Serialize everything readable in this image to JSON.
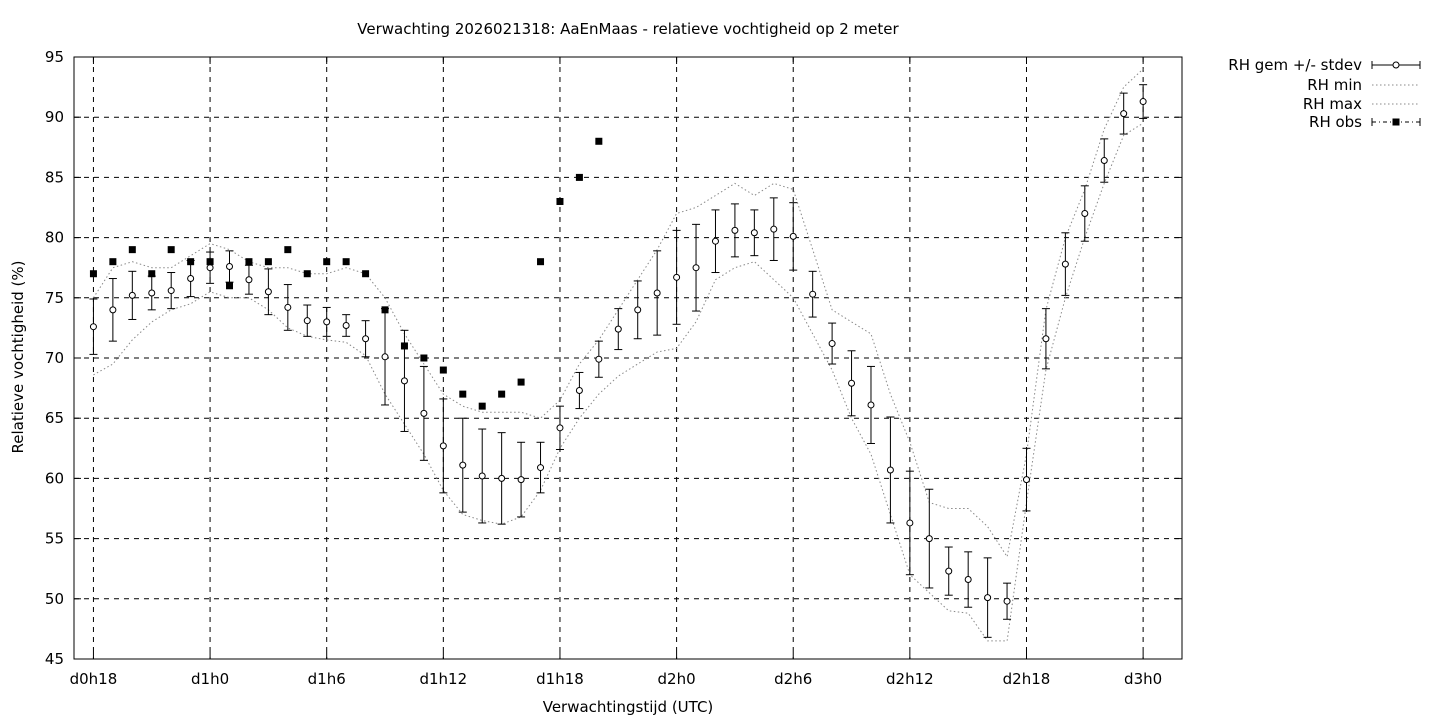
{
  "chart_data": {
    "type": "scatter",
    "title": "Verwachting 2026021318: AaEnMaas - relatieve vochtigheid op 2 meter",
    "xlabel": "Verwachtingstijd (UTC)",
    "ylabel": "Relatieve vochtigheid (%)",
    "xlim": [
      -1,
      56
    ],
    "ylim": [
      45,
      95
    ],
    "x_ticks": [
      {
        "x": 0,
        "label": "d0h18"
      },
      {
        "x": 6,
        "label": "d1h0"
      },
      {
        "x": 12,
        "label": "d1h6"
      },
      {
        "x": 18,
        "label": "d1h12"
      },
      {
        "x": 24,
        "label": "d1h18"
      },
      {
        "x": 30,
        "label": "d2h0"
      },
      {
        "x": 36,
        "label": "d2h6"
      },
      {
        "x": 42,
        "label": "d2h12"
      },
      {
        "x": 48,
        "label": "d2h18"
      },
      {
        "x": 54,
        "label": "d3h0"
      }
    ],
    "y_ticks": [
      45,
      50,
      55,
      60,
      65,
      70,
      75,
      80,
      85,
      90,
      95
    ],
    "grid": true,
    "legend_position": "outside-top-right",
    "series": [
      {
        "name": "RH gem +/- stdev",
        "style": "errorbars",
        "x": [
          0,
          1,
          2,
          3,
          4,
          5,
          6,
          7,
          8,
          9,
          10,
          11,
          12,
          13,
          14,
          15,
          16,
          17,
          18,
          19,
          20,
          21,
          22,
          23,
          24,
          25,
          26,
          27,
          28,
          29,
          30,
          31,
          32,
          33,
          34,
          35,
          36,
          37,
          38,
          39,
          40,
          41,
          42,
          43,
          44,
          45,
          46,
          47,
          48,
          49,
          50,
          51,
          52,
          53,
          54
        ],
        "y": [
          72.6,
          74.0,
          75.2,
          75.4,
          75.6,
          76.6,
          77.5,
          77.6,
          76.5,
          75.5,
          74.2,
          73.1,
          73.0,
          72.7,
          71.6,
          70.1,
          68.1,
          65.4,
          62.7,
          61.1,
          60.2,
          60.0,
          59.9,
          60.9,
          64.2,
          67.3,
          69.9,
          72.4,
          74.0,
          75.4,
          76.7,
          77.5,
          79.7,
          80.6,
          80.4,
          80.7,
          80.1,
          75.3,
          71.2,
          67.9,
          66.1,
          60.7,
          56.3,
          55.0,
          52.3,
          51.6,
          50.1,
          49.8,
          59.9,
          71.6,
          77.8,
          82.0,
          86.4,
          90.3,
          91.3
        ],
        "err": [
          2.3,
          2.6,
          2.0,
          1.4,
          1.5,
          1.5,
          1.3,
          1.3,
          1.2,
          1.9,
          1.9,
          1.3,
          1.2,
          0.9,
          1.5,
          4.0,
          4.2,
          3.9,
          3.9,
          3.9,
          3.9,
          3.8,
          3.1,
          2.1,
          1.8,
          1.5,
          1.5,
          1.7,
          2.4,
          3.5,
          3.9,
          3.6,
          2.6,
          2.2,
          1.9,
          2.6,
          2.8,
          1.9,
          1.7,
          2.7,
          3.2,
          4.4,
          4.3,
          4.1,
          2.0,
          2.3,
          3.3,
          1.5,
          2.6,
          2.5,
          2.6,
          2.3,
          1.8,
          1.7,
          1.4
        ]
      },
      {
        "name": "RH min",
        "style": "dotted",
        "x": [
          0,
          1,
          2,
          3,
          4,
          5,
          6,
          7,
          8,
          9,
          10,
          11,
          12,
          13,
          14,
          15,
          16,
          17,
          18,
          19,
          20,
          21,
          22,
          23,
          24,
          25,
          26,
          27,
          28,
          29,
          30,
          31,
          32,
          33,
          34,
          35,
          36,
          37,
          38,
          39,
          40,
          41,
          42,
          43,
          44,
          45,
          46,
          47,
          48,
          49,
          50,
          51,
          52,
          53,
          54
        ],
        "y": [
          68.6,
          69.5,
          71.5,
          73.0,
          74.0,
          74.5,
          75.5,
          75.0,
          75.0,
          74.0,
          72.5,
          71.8,
          71.5,
          71.3,
          70.2,
          67.0,
          64.5,
          62.0,
          59.0,
          57.0,
          56.5,
          56.2,
          56.8,
          59.0,
          62.5,
          65.0,
          67.0,
          68.5,
          69.5,
          70.5,
          70.8,
          73.0,
          76.5,
          77.5,
          78.0,
          76.5,
          75.0,
          72.0,
          69.0,
          65.0,
          62.0,
          57.0,
          52.0,
          50.5,
          49.0,
          48.8,
          46.5,
          46.5,
          58.0,
          69.0,
          75.0,
          80.0,
          84.5,
          88.5,
          89.5
        ]
      },
      {
        "name": "RH max",
        "style": "dotted",
        "x": [
          0,
          1,
          2,
          3,
          4,
          5,
          6,
          7,
          8,
          9,
          10,
          11,
          12,
          13,
          14,
          15,
          16,
          17,
          18,
          19,
          20,
          21,
          22,
          23,
          24,
          25,
          26,
          27,
          28,
          29,
          30,
          31,
          32,
          33,
          34,
          35,
          36,
          37,
          38,
          39,
          40,
          41,
          42,
          43,
          44,
          45,
          46,
          47,
          48,
          49,
          50,
          51,
          52,
          53,
          54
        ],
        "y": [
          75.0,
          77.5,
          78.0,
          77.5,
          77.5,
          78.5,
          79.5,
          79.0,
          78.0,
          77.5,
          77.5,
          77.0,
          77.0,
          77.5,
          77.0,
          75.0,
          72.0,
          69.5,
          67.0,
          66.0,
          65.5,
          65.5,
          65.5,
          65.0,
          66.5,
          69.5,
          71.5,
          74.0,
          76.5,
          79.0,
          82.0,
          82.5,
          83.5,
          84.5,
          83.5,
          84.5,
          84.0,
          79.0,
          74.0,
          73.0,
          72.0,
          67.0,
          63.0,
          58.0,
          57.5,
          57.5,
          56.0,
          53.5,
          62.0,
          74.0,
          80.0,
          84.0,
          89.0,
          92.5,
          94.0
        ]
      },
      {
        "name": "RH obs",
        "style": "points",
        "x": [
          0,
          1,
          2,
          3,
          4,
          5,
          6,
          7,
          8,
          9,
          10,
          11,
          12,
          13,
          14,
          15,
          16,
          17,
          18,
          19,
          20,
          21,
          22,
          23,
          24,
          25,
          26
        ],
        "y": [
          77,
          78,
          79,
          77,
          79,
          78,
          78,
          76,
          78,
          78,
          79,
          77,
          78,
          78,
          77,
          74,
          71,
          70,
          69,
          67,
          66,
          67,
          68,
          78,
          83,
          85,
          88
        ]
      }
    ]
  }
}
